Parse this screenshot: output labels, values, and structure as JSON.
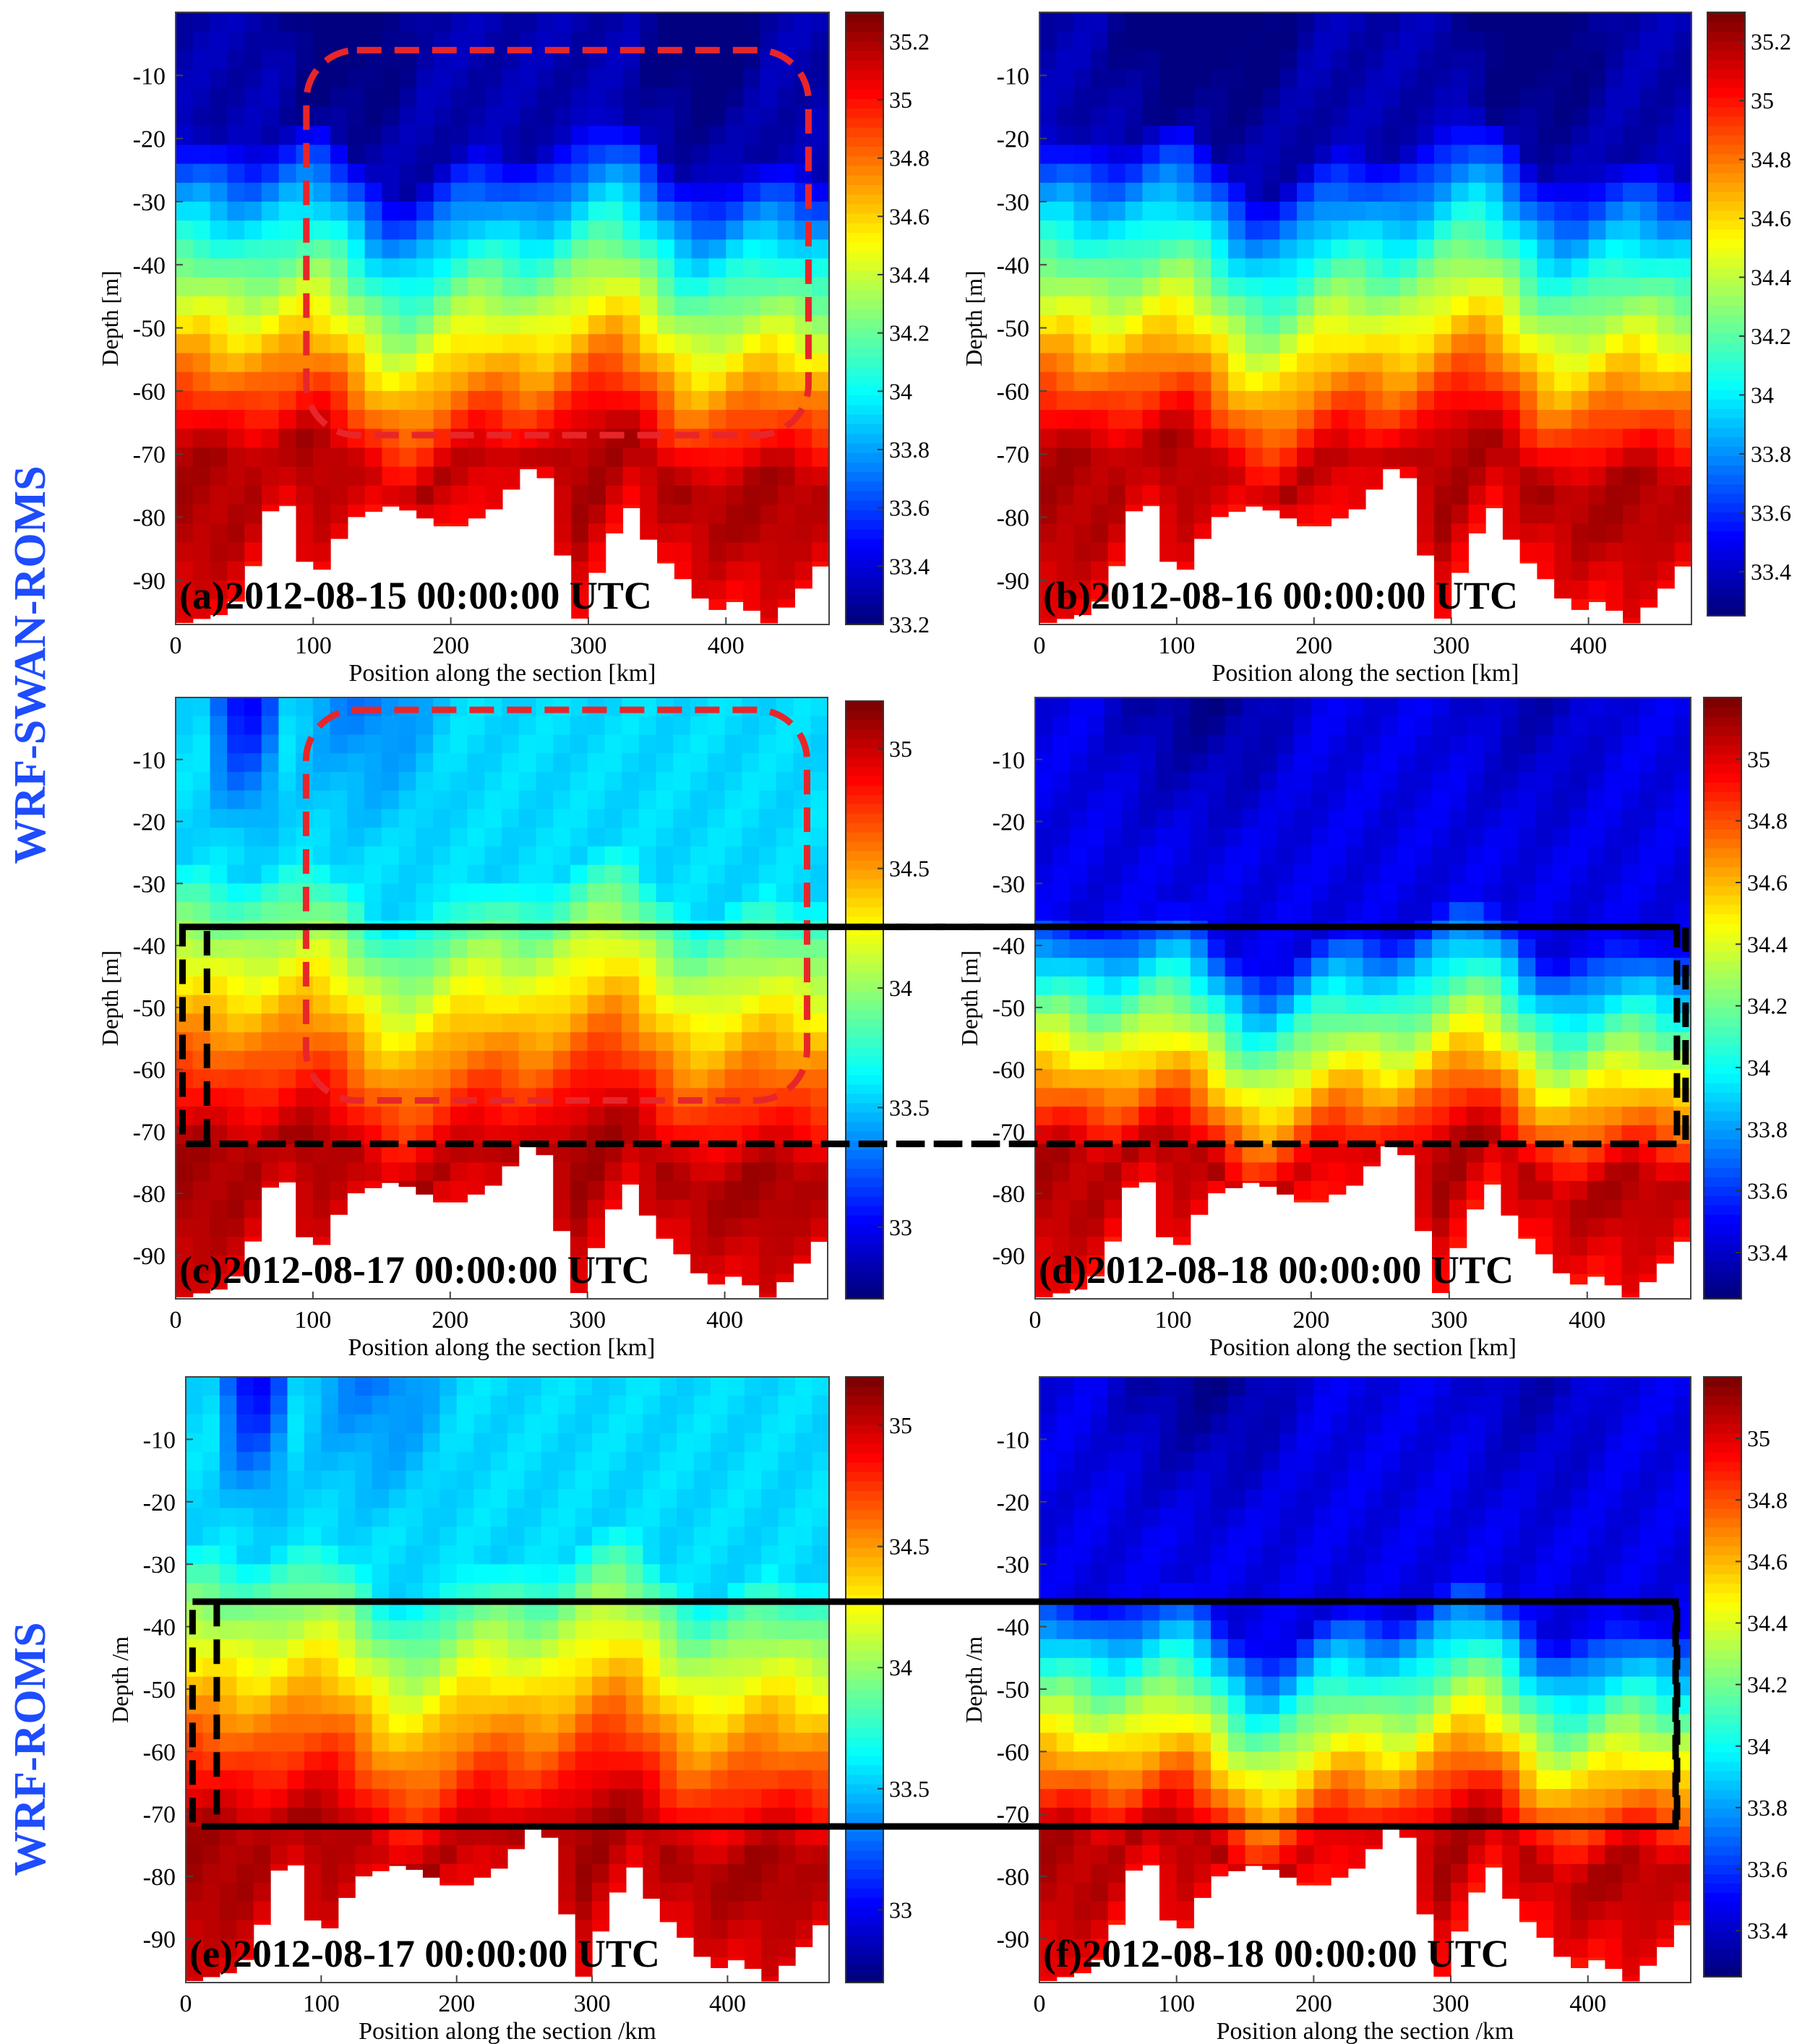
{
  "figure": {
    "row_labels": [
      "WRF-SWAN-ROMS",
      "WRF-ROMS"
    ],
    "colormap": "jet",
    "highlight_colors": {
      "red_box": "#e8262a",
      "black_box": "#000000"
    }
  },
  "chart_data": [
    {
      "id": "a",
      "type": "heatmap",
      "model": "WRF-SWAN-ROMS",
      "title": "(a)2012-08-15 00:00:00 UTC",
      "xlabel": "Position along the section [km]",
      "ylabel": "Depth [m]",
      "xlim": [
        0,
        475
      ],
      "ylim": [
        -97,
        0
      ],
      "xticks": [
        "0",
        "100",
        "200",
        "300",
        "400"
      ],
      "yticks": [
        "-10",
        "-20",
        "-30",
        "-40",
        "-50",
        "-60",
        "-70",
        "-80",
        "-90"
      ],
      "colorbar": {
        "min": 33.2,
        "max": 35.3,
        "ticks": [
          "35.2",
          "35",
          "34.8",
          "34.6",
          "34.4",
          "34.2",
          "34",
          "33.8",
          "33.6",
          "33.4",
          "33.2"
        ]
      },
      "field": {
        "surface": 33.3,
        "thermocline_top": -22,
        "thermocline_depth": 50,
        "deep": 35.2,
        "fresh_patches": [
          [
            70,
            180,
            0.4
          ],
          [
            330,
            430,
            0.4
          ]
        ]
      },
      "bottom_profile": [
        [
          0,
          -97
        ],
        [
          40,
          -95
        ],
        [
          60,
          -86
        ],
        [
          75,
          -74
        ],
        [
          90,
          -84
        ],
        [
          100,
          -92
        ],
        [
          110,
          -86
        ],
        [
          130,
          -80
        ],
        [
          160,
          -78
        ],
        [
          200,
          -82
        ],
        [
          230,
          -79
        ],
        [
          250,
          -74
        ],
        [
          265,
          -70
        ],
        [
          280,
          -85
        ],
        [
          295,
          -97
        ],
        [
          310,
          -86
        ],
        [
          330,
          -78
        ],
        [
          350,
          -86
        ],
        [
          370,
          -90
        ],
        [
          390,
          -95
        ],
        [
          410,
          -93
        ],
        [
          430,
          -97
        ],
        [
          450,
          -93
        ],
        [
          475,
          -86
        ]
      ],
      "boxes": [
        {
          "style": "red",
          "x": [
            95,
            460
          ],
          "y": [
            -6,
            -67
          ]
        }
      ]
    },
    {
      "id": "b",
      "type": "heatmap",
      "model": "WRF-SWAN-ROMS",
      "title": "(b)2012-08-16 00:00:00 UTC",
      "xlabel": "Position along the section [km]",
      "ylabel": "Depth [m]",
      "xlim": [
        0,
        475
      ],
      "ylim": [
        -97,
        0
      ],
      "xticks": [
        "0",
        "100",
        "200",
        "300",
        "400"
      ],
      "yticks": [
        "-10",
        "-20",
        "-30",
        "-40",
        "-50",
        "-60",
        "-70",
        "-80",
        "-90"
      ],
      "colorbar": {
        "min": 33.25,
        "max": 35.3,
        "ticks": [
          "35.2",
          "35",
          "34.8",
          "34.6",
          "34.4",
          "34.2",
          "34",
          "33.8",
          "33.6",
          "33.4"
        ]
      },
      "field": {
        "surface": 33.35,
        "thermocline_top": -22,
        "thermocline_depth": 50,
        "deep": 35.2,
        "fresh_patches": [
          [
            40,
            200,
            0.4
          ],
          [
            300,
            420,
            0.4
          ]
        ]
      },
      "bottom_profile": [
        [
          0,
          -97
        ],
        [
          40,
          -95
        ],
        [
          60,
          -86
        ],
        [
          75,
          -74
        ],
        [
          90,
          -84
        ],
        [
          100,
          -92
        ],
        [
          110,
          -86
        ],
        [
          130,
          -80
        ],
        [
          160,
          -78
        ],
        [
          200,
          -82
        ],
        [
          230,
          -79
        ],
        [
          250,
          -74
        ],
        [
          265,
          -70
        ],
        [
          280,
          -85
        ],
        [
          295,
          -97
        ],
        [
          310,
          -86
        ],
        [
          330,
          -78
        ],
        [
          350,
          -86
        ],
        [
          370,
          -90
        ],
        [
          390,
          -95
        ],
        [
          410,
          -93
        ],
        [
          430,
          -97
        ],
        [
          450,
          -93
        ],
        [
          475,
          -86
        ]
      ],
      "boxes": []
    },
    {
      "id": "c",
      "type": "heatmap",
      "model": "WRF-SWAN-ROMS",
      "title": "(c)2012-08-17 00:00:00 UTC",
      "xlabel": "Position along the section [km]",
      "ylabel": "Depth [m]",
      "xlim": [
        0,
        475
      ],
      "ylim": [
        -97,
        0
      ],
      "xticks": [
        "0",
        "100",
        "200",
        "300",
        "400"
      ],
      "yticks": [
        "-10",
        "-20",
        "-30",
        "-40",
        "-50",
        "-60",
        "-70",
        "-80",
        "-90"
      ],
      "colorbar": {
        "min": 32.7,
        "max": 35.2,
        "ticks": [
          "35",
          "34.5",
          "34",
          "33.5",
          "33"
        ]
      },
      "field": {
        "surface": 33.55,
        "thermocline_top": -30,
        "thermocline_depth": 45,
        "deep": 35.1,
        "fresh_patches": [
          [
            20,
            80,
            1.2
          ],
          [
            80,
            200,
            0.5
          ]
        ]
      },
      "bottom_profile": [
        [
          0,
          -97
        ],
        [
          40,
          -95
        ],
        [
          60,
          -86
        ],
        [
          75,
          -74
        ],
        [
          90,
          -84
        ],
        [
          100,
          -92
        ],
        [
          110,
          -86
        ],
        [
          130,
          -80
        ],
        [
          160,
          -78
        ],
        [
          200,
          -82
        ],
        [
          230,
          -79
        ],
        [
          250,
          -74
        ],
        [
          265,
          -70
        ],
        [
          280,
          -85
        ],
        [
          295,
          -97
        ],
        [
          310,
          -86
        ],
        [
          330,
          -78
        ],
        [
          350,
          -86
        ],
        [
          370,
          -90
        ],
        [
          390,
          -95
        ],
        [
          410,
          -93
        ],
        [
          430,
          -97
        ],
        [
          450,
          -93
        ],
        [
          475,
          -86
        ]
      ],
      "boxes": [
        {
          "style": "red",
          "x": [
            95,
            460
          ],
          "y": [
            -2,
            -65
          ]
        },
        {
          "style": "black",
          "x": [
            5,
            1100
          ],
          "y": [
            -37,
            -72
          ]
        }
      ]
    },
    {
      "id": "d",
      "type": "heatmap",
      "model": "WRF-SWAN-ROMS",
      "title": "(d)2012-08-18 00:00:00 UTC",
      "xlabel": "Position along the section [km]",
      "ylabel": "Depth [m]",
      "xlim": [
        0,
        475
      ],
      "ylim": [
        -97,
        0
      ],
      "xticks": [
        "0",
        "100",
        "200",
        "300",
        "400"
      ],
      "yticks": [
        "-10",
        "-20",
        "-30",
        "-40",
        "-50",
        "-60",
        "-70",
        "-80",
        "-90"
      ],
      "colorbar": {
        "min": 33.25,
        "max": 35.2,
        "ticks": [
          "35",
          "34.8",
          "34.6",
          "34.4",
          "34.2",
          "34",
          "33.8",
          "33.6",
          "33.4"
        ]
      },
      "field": {
        "surface": 33.45,
        "thermocline_top": -38,
        "thermocline_depth": 38,
        "deep": 35.1,
        "fresh_patches": [
          [
            40,
            200,
            0.35
          ],
          [
            300,
            420,
            0.2
          ]
        ]
      },
      "bottom_profile": [
        [
          0,
          -97
        ],
        [
          40,
          -95
        ],
        [
          60,
          -86
        ],
        [
          75,
          -74
        ],
        [
          90,
          -84
        ],
        [
          100,
          -92
        ],
        [
          110,
          -86
        ],
        [
          130,
          -80
        ],
        [
          160,
          -78
        ],
        [
          200,
          -82
        ],
        [
          230,
          -79
        ],
        [
          250,
          -74
        ],
        [
          265,
          -70
        ],
        [
          280,
          -85
        ],
        [
          295,
          -97
        ],
        [
          310,
          -86
        ],
        [
          330,
          -78
        ],
        [
          350,
          -86
        ],
        [
          370,
          -90
        ],
        [
          390,
          -95
        ],
        [
          410,
          -93
        ],
        [
          430,
          -97
        ],
        [
          450,
          -93
        ],
        [
          475,
          -86
        ]
      ],
      "boxes": [
        {
          "style": "black",
          "x": [
            -600,
            465
          ],
          "y": [
            -37,
            -72
          ]
        }
      ]
    },
    {
      "id": "e",
      "type": "heatmap",
      "model": "WRF-ROMS",
      "title": "(e)2012-08-17 00:00:00 UTC",
      "xlabel": "Position along the section /km",
      "ylabel": "Depth /m",
      "xlim": [
        0,
        475
      ],
      "ylim": [
        -97,
        0
      ],
      "xticks": [
        "0",
        "100",
        "200",
        "300",
        "400"
      ],
      "yticks": [
        "-10",
        "-20",
        "-30",
        "-40",
        "-50",
        "-60",
        "-70",
        "-80",
        "-90"
      ],
      "colorbar": {
        "min": 32.7,
        "max": 35.2,
        "ticks": [
          "35",
          "34.5",
          "34",
          "33.5",
          "33"
        ]
      },
      "field": {
        "surface": 33.55,
        "thermocline_top": -30,
        "thermocline_depth": 45,
        "deep": 35.1,
        "fresh_patches": [
          [
            20,
            80,
            1.2
          ],
          [
            80,
            200,
            0.5
          ]
        ]
      },
      "bottom_profile": [
        [
          0,
          -97
        ],
        [
          40,
          -95
        ],
        [
          60,
          -86
        ],
        [
          75,
          -74
        ],
        [
          90,
          -84
        ],
        [
          100,
          -92
        ],
        [
          110,
          -86
        ],
        [
          130,
          -80
        ],
        [
          160,
          -78
        ],
        [
          200,
          -82
        ],
        [
          230,
          -79
        ],
        [
          250,
          -74
        ],
        [
          265,
          -70
        ],
        [
          280,
          -85
        ],
        [
          295,
          -97
        ],
        [
          310,
          -86
        ],
        [
          330,
          -78
        ],
        [
          350,
          -86
        ],
        [
          370,
          -90
        ],
        [
          390,
          -95
        ],
        [
          410,
          -93
        ],
        [
          430,
          -97
        ],
        [
          450,
          -93
        ],
        [
          475,
          -86
        ]
      ],
      "boxes": [
        {
          "style": "black",
          "x": [
            5,
            1100
          ],
          "y": [
            -36,
            -72
          ]
        }
      ]
    },
    {
      "id": "f",
      "type": "heatmap",
      "model": "WRF-ROMS",
      "title": "(f)2012-08-18 00:00:00 UTC",
      "xlabel": "Position along the section /km",
      "ylabel": "Depth /m",
      "xlim": [
        0,
        475
      ],
      "ylim": [
        -97,
        0
      ],
      "xticks": [
        "0",
        "100",
        "200",
        "300",
        "400"
      ],
      "yticks": [
        "-10",
        "-20",
        "-30",
        "-40",
        "-50",
        "-60",
        "-70",
        "-80",
        "-90"
      ],
      "colorbar": {
        "min": 33.25,
        "max": 35.2,
        "ticks": [
          "35",
          "34.8",
          "34.6",
          "34.4",
          "34.2",
          "34",
          "33.8",
          "33.6",
          "33.4"
        ]
      },
      "field": {
        "surface": 33.45,
        "thermocline_top": -38,
        "thermocline_depth": 38,
        "deep": 35.1,
        "fresh_patches": [
          [
            40,
            200,
            0.35
          ],
          [
            300,
            420,
            0.2
          ]
        ]
      },
      "bottom_profile": [
        [
          0,
          -97
        ],
        [
          40,
          -95
        ],
        [
          60,
          -86
        ],
        [
          75,
          -74
        ],
        [
          90,
          -84
        ],
        [
          100,
          -92
        ],
        [
          110,
          -86
        ],
        [
          130,
          -80
        ],
        [
          160,
          -78
        ],
        [
          200,
          -82
        ],
        [
          230,
          -79
        ],
        [
          250,
          -74
        ],
        [
          265,
          -70
        ],
        [
          280,
          -85
        ],
        [
          295,
          -97
        ],
        [
          310,
          -86
        ],
        [
          330,
          -78
        ],
        [
          350,
          -86
        ],
        [
          370,
          -90
        ],
        [
          390,
          -95
        ],
        [
          410,
          -93
        ],
        [
          430,
          -97
        ],
        [
          450,
          -93
        ],
        [
          475,
          -86
        ]
      ],
      "boxes": [
        {
          "style": "black",
          "x": [
            -600,
            465
          ],
          "y": [
            -36,
            -72
          ]
        }
      ]
    }
  ]
}
